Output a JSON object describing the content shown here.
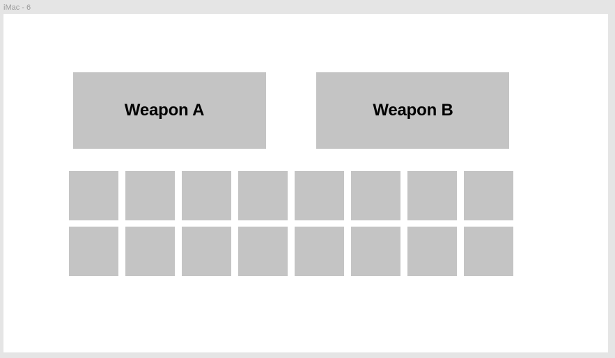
{
  "frame": {
    "label": "iMac - 6"
  },
  "weapons": [
    {
      "label": "Weapon A"
    },
    {
      "label": "Weapon B"
    }
  ],
  "inventory": {
    "rows": 2,
    "columns": 8,
    "slot_color": "#c4c4c4"
  },
  "colors": {
    "panel": "#c4c4c4",
    "canvas": "#ffffff",
    "background": "#e5e5e5"
  }
}
